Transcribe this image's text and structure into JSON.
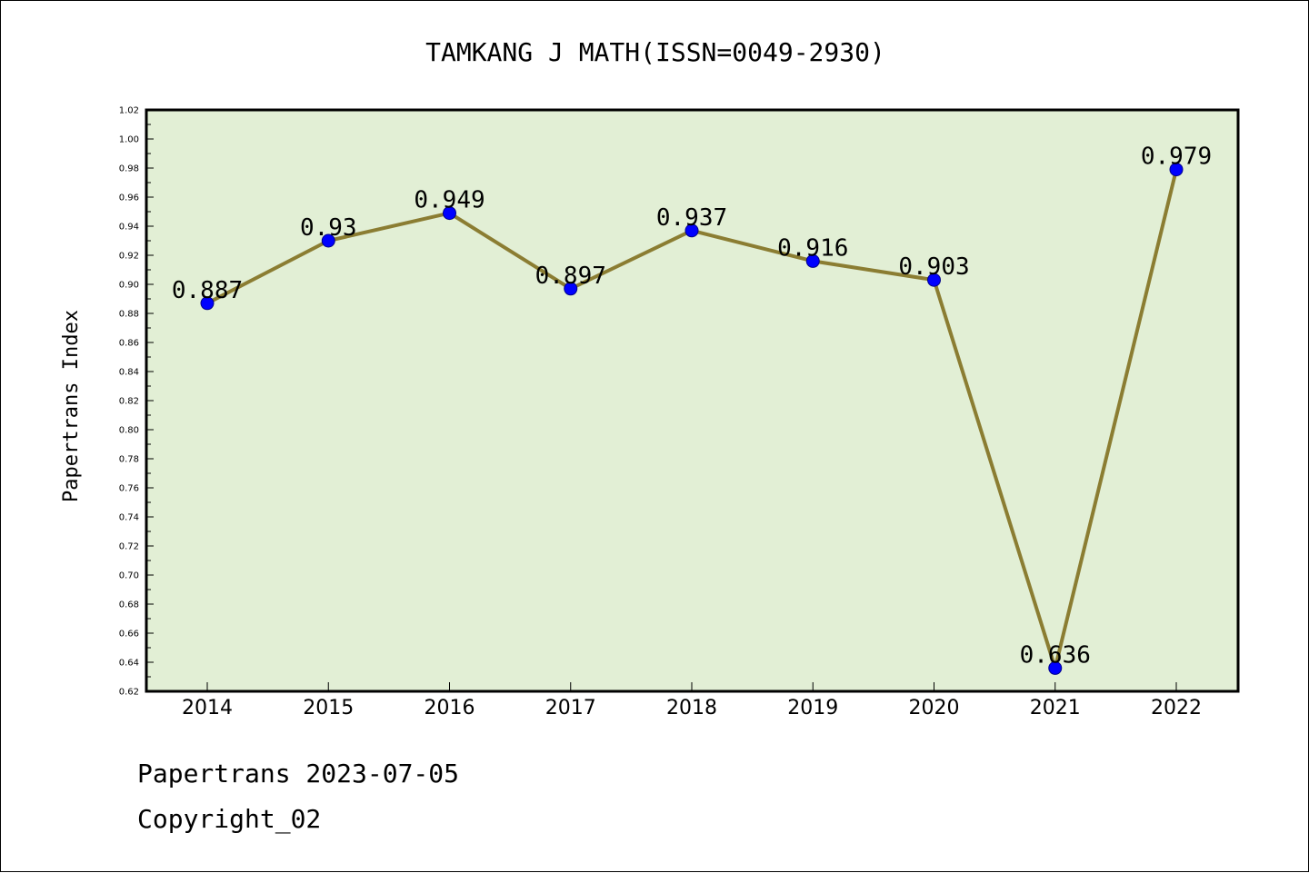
{
  "chart_data": {
    "type": "line",
    "title": "TAMKANG J MATH(ISSN=0049-2930)",
    "xlabel": "",
    "ylabel": "Papertrans Index",
    "categories": [
      "2014",
      "2015",
      "2016",
      "2017",
      "2018",
      "2019",
      "2020",
      "2021",
      "2022"
    ],
    "series": [
      {
        "values": [
          0.887,
          0.93,
          0.949,
          0.897,
          0.937,
          0.916,
          0.903,
          0.636,
          0.979
        ],
        "data_labels": [
          "0.887",
          "0.93",
          "0.949",
          "0.897",
          "0.937",
          "0.916",
          "0.903",
          "0.636",
          "0.979"
        ]
      }
    ],
    "ylim": [
      0.62,
      1.02
    ],
    "yticks": [
      "0.62",
      "0.64",
      "0.66",
      "0.68",
      "0.70",
      "0.72",
      "0.74",
      "0.76",
      "0.78",
      "0.80",
      "0.82",
      "0.84",
      "0.86",
      "0.88",
      "0.90",
      "0.92",
      "0.94",
      "0.96",
      "0.98",
      "1.00",
      "1.02"
    ],
    "grid": false,
    "legend": "none",
    "colors": {
      "plot_background": "#e2efd5",
      "line": "#8b7d32",
      "marker": "#0000ff",
      "axes": "#000000"
    }
  },
  "footer": {
    "line1": "Papertrans 2023-07-05",
    "line2": "Copyright_02"
  }
}
